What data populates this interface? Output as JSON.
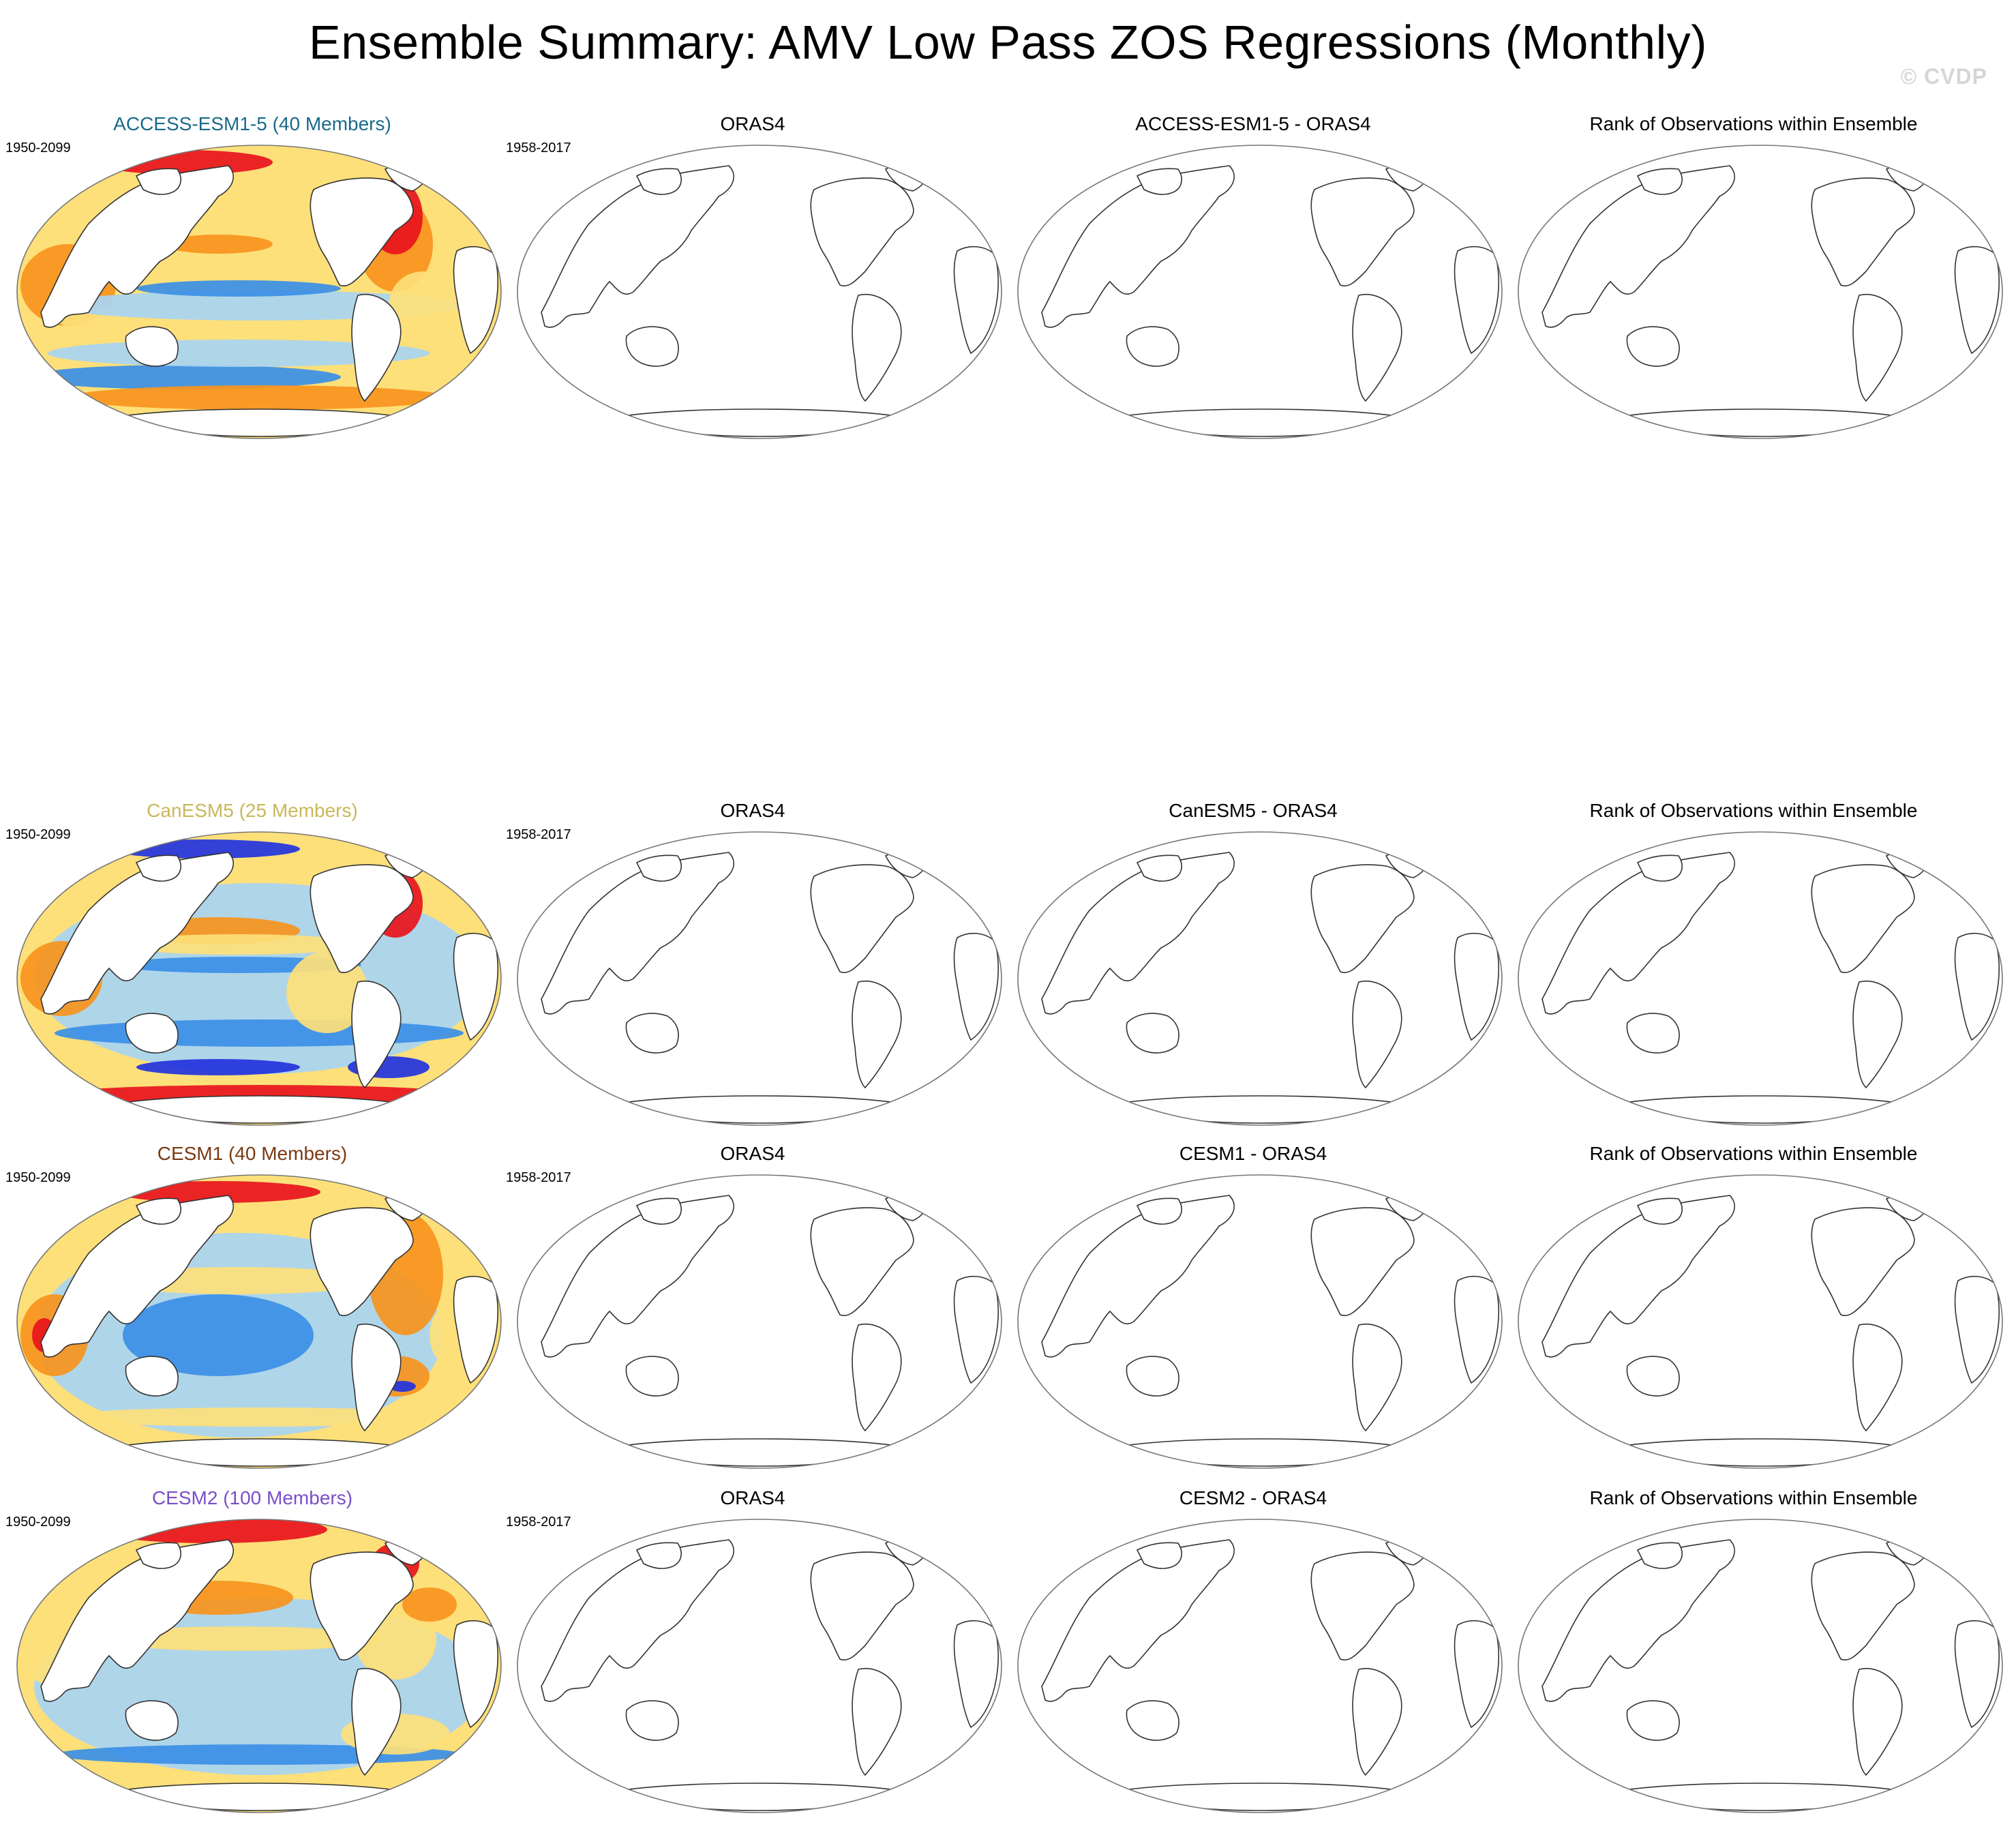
{
  "title": "Ensemble Summary: AMV Low Pass ZOS Regressions (Monthly)",
  "watermark": "© CVDP",
  "colors": {
    "accent_access": "#1a6a8a",
    "accent_canesm": "#c8b85a",
    "accent_cesm1": "#7a3a12",
    "accent_cesm2": "#7a4fc8",
    "warm_strong": "#e8141c",
    "warm": "#f7941d",
    "warm_light": "#fde07a",
    "cool_light": "#a8d4f2",
    "cool": "#3b8fe6",
    "cool_strong": "#2233dd",
    "land_outline": "#333333"
  },
  "rows": [
    {
      "model_label": "ACCESS-ESM1-5 (40 Members)",
      "model_years": "1950-2099",
      "obs_label": "ORAS4",
      "obs_years": "1958-2017",
      "diff_label": "ACCESS-ESM1-5 - ORAS4",
      "rank_label": "Rank of Observations within Ensemble"
    },
    {
      "model_label": "CanESM5 (25 Members)",
      "model_years": "1950-2099",
      "obs_label": "ORAS4",
      "obs_years": "1958-2017",
      "diff_label": "CanESM5 - ORAS4",
      "rank_label": "Rank of Observations within Ensemble"
    },
    {
      "model_label": "CESM1 (40 Members)",
      "model_years": "1950-2099",
      "obs_label": "ORAS4",
      "obs_years": "1958-2017",
      "diff_label": "CESM1 - ORAS4",
      "rank_label": "Rank of Observations within Ensemble"
    },
    {
      "model_label": "CESM2 (100 Members)",
      "model_years": "1950-2099",
      "obs_label": "ORAS4",
      "obs_years": "1958-2017",
      "diff_label": "CESM2 - ORAS4",
      "rank_label": "Rank of Observations within Ensemble"
    }
  ]
}
